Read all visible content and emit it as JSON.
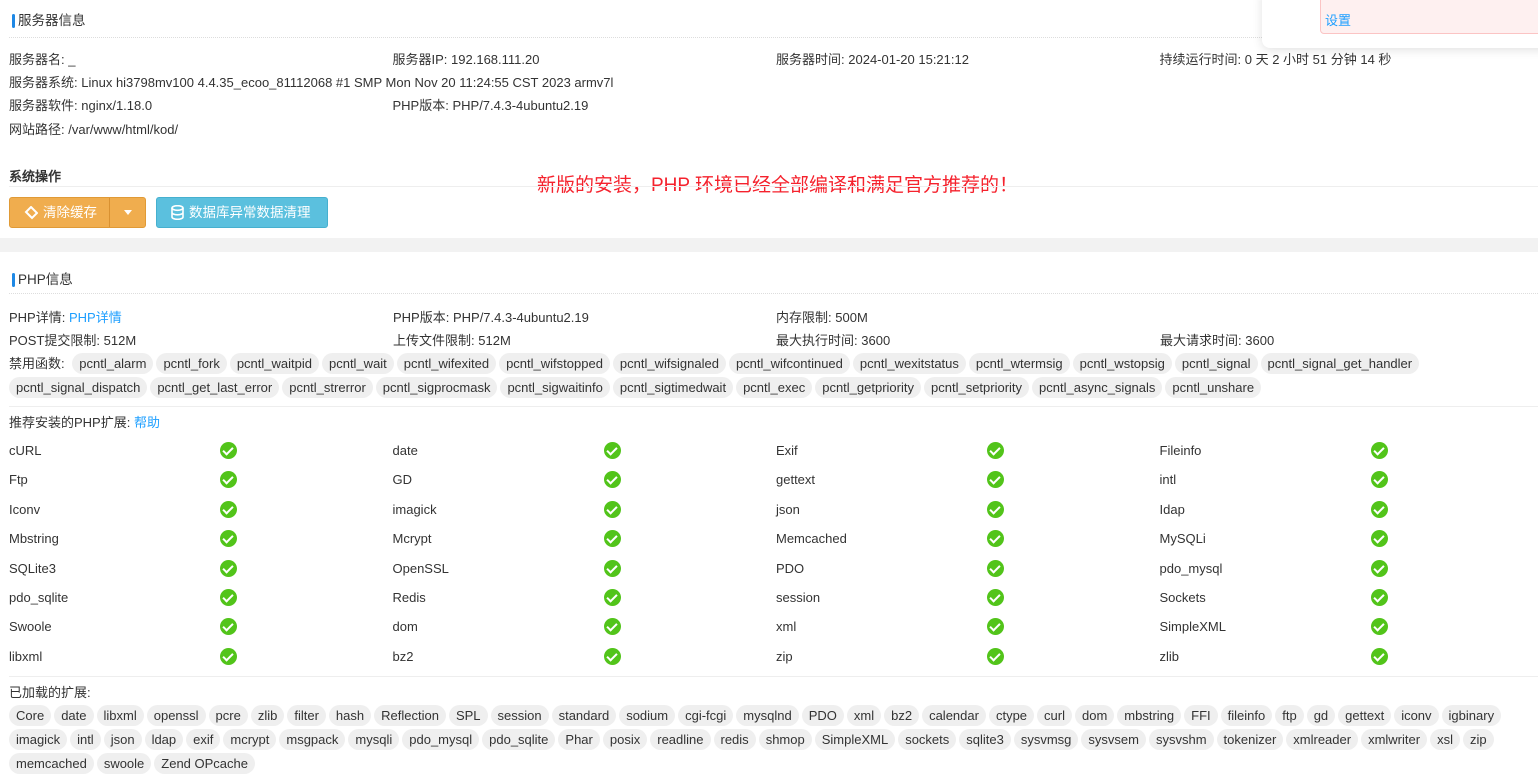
{
  "server": {
    "title": "服务器信息",
    "rows": [
      [
        {
          "k": "服务器名:",
          "v": "_"
        },
        {
          "k": "服务器IP:",
          "v": "192.168.111.20"
        },
        {
          "k": "服务器时间:",
          "v": "2024-01-20 15:21:12"
        },
        {
          "k": "持续运行时间:",
          "v": "0 天 2 小时 51 分钟 14 秒"
        }
      ],
      [
        {
          "k": "服务器系统:",
          "v": "Linux hi3798mv100 4.4.35_ecoo_81112068 #1 SMP Mon Nov 20 11:24:55 CST 2023 armv7l"
        }
      ],
      [
        {
          "k": "服务器软件:",
          "v": "nginx/1.18.0"
        },
        {
          "k": "PHP版本:",
          "v": "PHP/7.4.3-4ubuntu2.19"
        }
      ],
      [
        {
          "k": "网站路径:",
          "v": "/var/www/html/kod/"
        }
      ]
    ]
  },
  "ops": {
    "title": "系统操作",
    "clear_cache": "清除缓存",
    "db_clean": "数据库异常数据清理",
    "notice": "新版的安装，PHP 环境已经全部编译和满足官方推荐的！"
  },
  "popup": {
    "link": "设置"
  },
  "php": {
    "title": "PHP信息",
    "detail_label": "PHP详情:",
    "detail_link": "PHP详情",
    "version_label": "PHP版本:",
    "version": "PHP/7.4.3-4ubuntu2.19",
    "memory_label": "内存限制:",
    "memory": "500M",
    "post_label": "POST提交限制:",
    "post": "512M",
    "upload_label": "上传文件限制:",
    "upload": "512M",
    "exec_label": "最大执行时间:",
    "exec": "3600",
    "req_label": "最大请求时间:",
    "req": "3600",
    "disabled_label": "禁用函数:",
    "disabled": [
      "pcntl_alarm",
      "pcntl_fork",
      "pcntl_waitpid",
      "pcntl_wait",
      "pcntl_wifexited",
      "pcntl_wifstopped",
      "pcntl_wifsignaled",
      "pcntl_wifcontinued",
      "pcntl_wexitstatus",
      "pcntl_wtermsig",
      "pcntl_wstopsig",
      "pcntl_signal",
      "pcntl_signal_get_handler",
      "pcntl_signal_dispatch",
      "pcntl_get_last_error",
      "pcntl_strerror",
      "pcntl_sigprocmask",
      "pcntl_sigwaitinfo",
      "pcntl_sigtimedwait",
      "pcntl_exec",
      "pcntl_getpriority",
      "pcntl_setpriority",
      "pcntl_async_signals",
      "pcntl_unshare"
    ],
    "recommend_label": "推荐安装的PHP扩展:",
    "recommend_help": "帮助",
    "extensions": [
      [
        "cURL",
        "date",
        "Exif",
        "Fileinfo"
      ],
      [
        "Ftp",
        "GD",
        "gettext",
        "intl"
      ],
      [
        "Iconv",
        "imagick",
        "json",
        "Idap"
      ],
      [
        "Mbstring",
        "Mcrypt",
        "Memcached",
        "MySQLi"
      ],
      [
        "SQLite3",
        "OpenSSL",
        "PDO",
        "pdo_mysql"
      ],
      [
        "pdo_sqlite",
        "Redis",
        "session",
        "Sockets"
      ],
      [
        "Swoole",
        "dom",
        "xml",
        "SimpleXML"
      ],
      [
        "libxml",
        "bz2",
        "zip",
        "zlib"
      ]
    ],
    "extension_status": "installed",
    "loaded_label": "已加载的扩展:",
    "loaded": [
      "Core",
      "date",
      "libxml",
      "openssl",
      "pcre",
      "zlib",
      "filter",
      "hash",
      "Reflection",
      "SPL",
      "session",
      "standard",
      "sodium",
      "cgi-fcgi",
      "mysqlnd",
      "PDO",
      "xml",
      "bz2",
      "calendar",
      "ctype",
      "curl",
      "dom",
      "mbstring",
      "FFI",
      "fileinfo",
      "ftp",
      "gd",
      "gettext",
      "iconv",
      "igbinary",
      "imagick",
      "intl",
      "json",
      "ldap",
      "exif",
      "mcrypt",
      "msgpack",
      "mysqli",
      "pdo_mysql",
      "pdo_sqlite",
      "Phar",
      "posix",
      "readline",
      "redis",
      "shmop",
      "SimpleXML",
      "sockets",
      "sqlite3",
      "sysvmsg",
      "sysvsem",
      "sysvshm",
      "tokenizer",
      "xmlreader",
      "xmlwriter",
      "xsl",
      "zip",
      "memcached",
      "swoole",
      "Zend OPcache"
    ]
  },
  "colors": {
    "accent": "#1e88e5",
    "link": "#1e9fff",
    "warning_btn": "#f0ad4e",
    "info_btn": "#5bc0de",
    "check": "#52c41a",
    "notice": "#f5222d"
  }
}
